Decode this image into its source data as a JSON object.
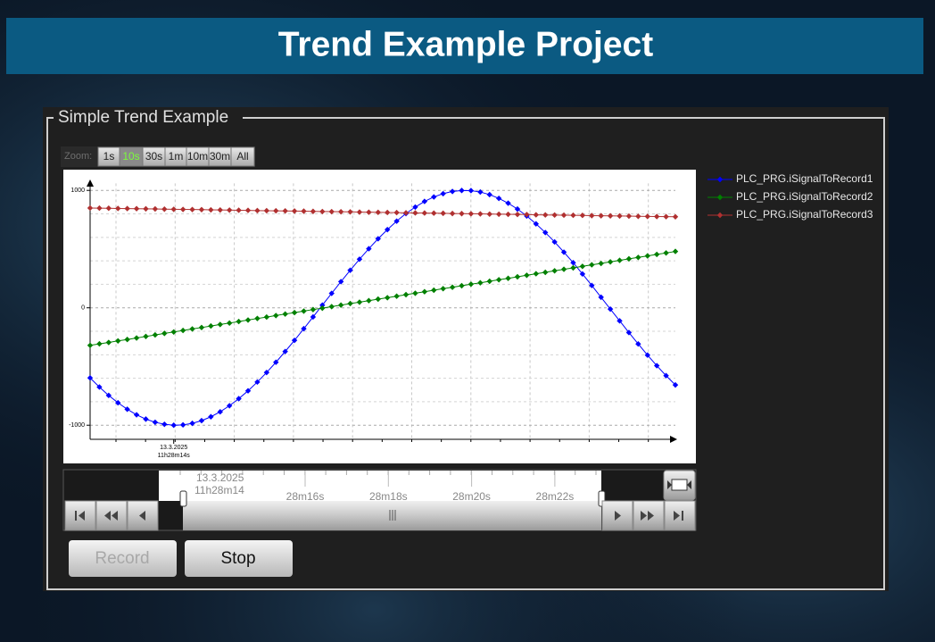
{
  "header": {
    "title": "Trend Example Project"
  },
  "panel": {
    "title": "Simple Trend Example"
  },
  "zoom": {
    "label": "Zoom:",
    "buttons": [
      "1s",
      "10s",
      "30s",
      "1m",
      "10m",
      "30m",
      "All"
    ],
    "selected": 1
  },
  "chart_data": {
    "type": "line",
    "x": [
      0,
      1,
      2,
      3,
      4,
      5,
      6,
      7,
      8,
      9,
      10,
      11,
      12,
      13,
      14,
      15,
      16,
      17,
      18,
      19,
      20,
      21,
      22,
      23,
      24,
      25,
      26,
      27,
      28,
      29,
      30,
      31,
      32,
      33,
      34,
      35,
      36,
      37,
      38,
      39,
      40,
      41,
      42,
      43,
      44,
      45,
      46,
      47,
      48,
      49,
      50,
      51,
      52,
      53,
      54,
      55,
      56,
      57,
      58,
      59,
      60,
      61,
      62,
      63
    ],
    "xlim": [
      0,
      63
    ],
    "xticks": [
      {
        "value": 9,
        "label": "13.3.2025",
        "sublabel": "11h28m14s"
      }
    ],
    "ylim": [
      -1120,
      1060
    ],
    "yticks": [
      -1000,
      0,
      1000
    ],
    "grid": true,
    "legend": "right",
    "series": [
      {
        "name": "PLC_PRG.iSignalToRecord1",
        "color": "#0000ff",
        "values": [
          -597,
          -675,
          -746,
          -809,
          -864,
          -911,
          -948,
          -975,
          -992,
          -1000,
          -997,
          -984,
          -961,
          -928,
          -886,
          -834,
          -774,
          -707,
          -632,
          -551,
          -464,
          -372,
          -277,
          -178,
          -78,
          23,
          123,
          223,
          320,
          414,
          503,
          588,
          666,
          738,
          803,
          858,
          906,
          944,
          972,
          991,
          999,
          998,
          986,
          964,
          932,
          891,
          841,
          782,
          715,
          641,
          561,
          474,
          384,
          288,
          190,
          90,
          -11,
          -111,
          -211,
          -308,
          -403,
          -493,
          -578,
          -657
        ]
      },
      {
        "name": "PLC_PRG.iSignalToRecord2",
        "color": "#008000",
        "values": [
          -320,
          -307,
          -295,
          -282,
          -270,
          -257,
          -244,
          -231,
          -218,
          -206,
          -193,
          -180,
          -168,
          -155,
          -142,
          -130,
          -117,
          -104,
          -91,
          -79,
          -66,
          -53,
          -41,
          -28,
          -15,
          -3,
          10,
          23,
          36,
          48,
          61,
          74,
          86,
          99,
          112,
          124,
          137,
          150,
          163,
          175,
          188,
          201,
          213,
          226,
          239,
          251,
          264,
          277,
          290,
          302,
          315,
          328,
          340,
          353,
          366,
          378,
          391,
          404,
          417,
          429,
          442,
          455,
          467,
          480
        ]
      },
      {
        "name": "PLC_PRG.iSignalToRecord3",
        "color": "#b03030",
        "values": [
          850,
          849,
          848,
          846,
          845,
          844,
          843,
          842,
          840,
          839,
          838,
          837,
          836,
          834,
          833,
          832,
          831,
          830,
          828,
          827,
          826,
          825,
          824,
          823,
          821,
          820,
          819,
          818,
          817,
          815,
          814,
          813,
          812,
          811,
          809,
          808,
          807,
          806,
          805,
          803,
          802,
          801,
          800,
          798,
          797,
          796,
          795,
          794,
          792,
          791,
          790,
          789,
          788,
          787,
          785,
          784,
          783,
          782,
          781,
          779,
          778,
          777,
          776,
          775
        ]
      }
    ]
  },
  "timeline": {
    "date": "13.3.2025",
    "time": "11h28m14",
    "ticks": [
      "28m16s",
      "28m18s",
      "28m20s",
      "28m22s"
    ]
  },
  "buttons": [
    "Record",
    "Stop"
  ]
}
